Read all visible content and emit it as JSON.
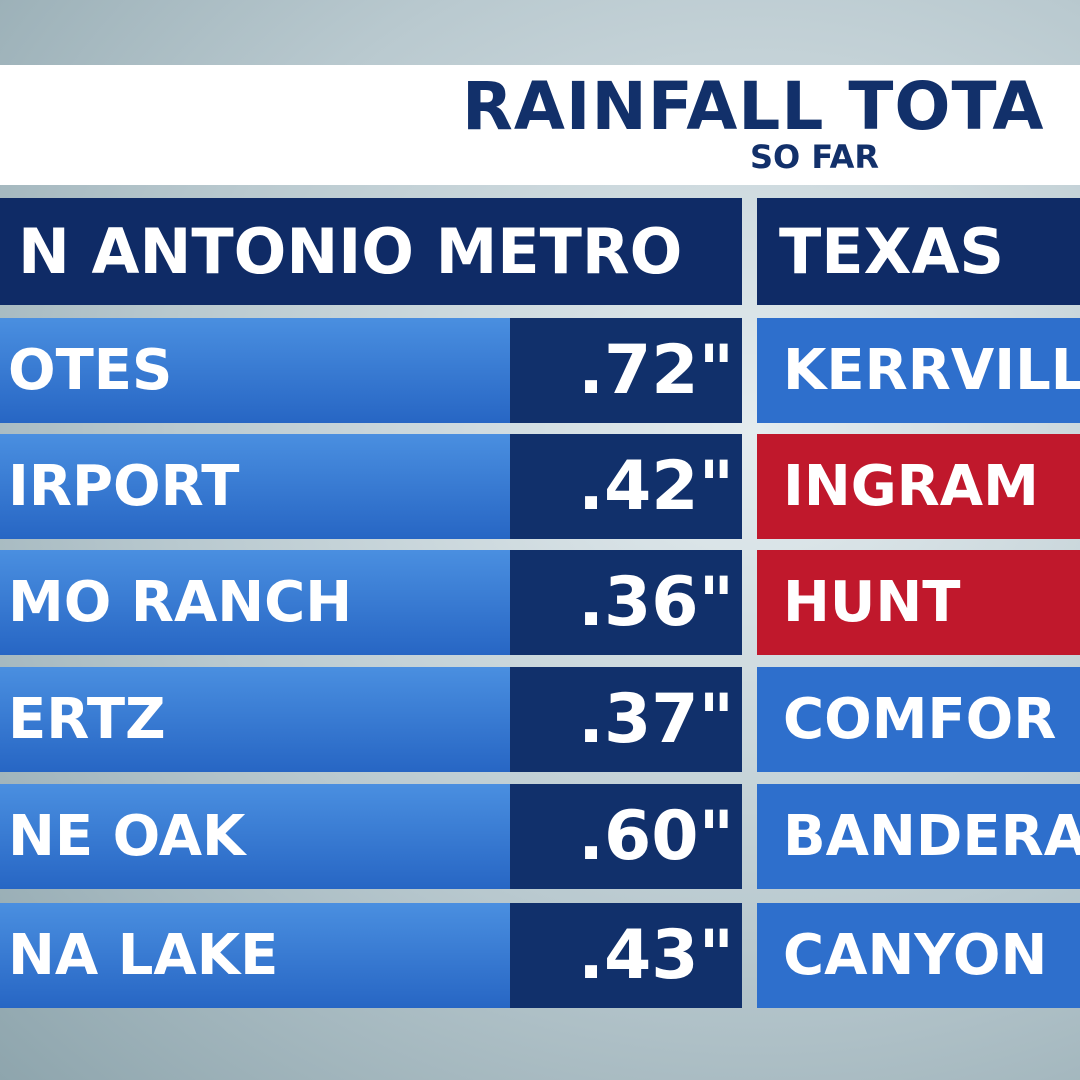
{
  "header": {
    "title": "RAINFALL TOTA",
    "subtitle": "SO FAR"
  },
  "left_table": {
    "heading": "N ANTONIO METRO",
    "rows": [
      {
        "name": "OTES",
        "value": ".72\""
      },
      {
        "name": "IRPORT",
        "value": ".42\""
      },
      {
        "name": "MO RANCH",
        "value": ".36\""
      },
      {
        "name": "ERTZ",
        "value": ".37\""
      },
      {
        "name": "NE OAK",
        "value": ".60\""
      },
      {
        "name": "NA LAKE",
        "value": ".43\""
      }
    ]
  },
  "right_table": {
    "heading": "TEXAS",
    "rows": [
      {
        "name": "KERRVILL",
        "color": "#2e6fcc"
      },
      {
        "name": "INGRAM",
        "color": "#c0182c"
      },
      {
        "name": "HUNT",
        "color": "#c0182c"
      },
      {
        "name": "COMFOR",
        "color": "#2e6fcc"
      },
      {
        "name": "BANDERA",
        "color": "#2e6fcc"
      },
      {
        "name": "CANYON",
        "color": "#2e6fcc"
      }
    ]
  }
}
